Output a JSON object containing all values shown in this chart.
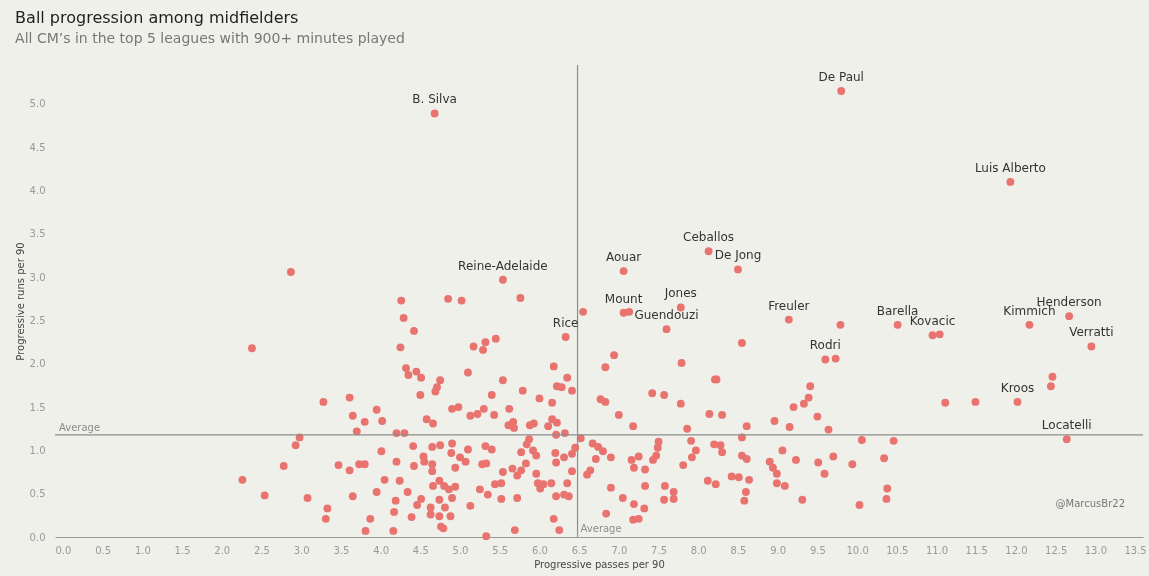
{
  "chart_data": {
    "type": "scatter",
    "title": "Ball progression among midfielders",
    "subtitle": "All CM’s in the top 5 leagues with 900+ minutes played",
    "xlabel": "Progressive passes per 90",
    "ylabel": "Progressive runs per 90",
    "xlim": [
      -0.1,
      13.6
    ],
    "ylim": [
      0,
      5.45
    ],
    "xticks": [
      {
        "value": 0,
        "label": "0.0"
      },
      0.5,
      {
        "value": 1,
        "label": "1.0"
      },
      1.5,
      {
        "value": 2,
        "label": "2.0"
      },
      2.5,
      {
        "value": 3,
        "label": "3.0"
      },
      3.5,
      {
        "value": 4,
        "label": "4.0"
      },
      4.5,
      {
        "value": 5,
        "label": "5.0"
      },
      5.5,
      {
        "value": 6,
        "label": "6.0"
      },
      6.5,
      {
        "value": 7,
        "label": "7.0"
      },
      7.5,
      {
        "value": 8,
        "label": "8.0"
      },
      8.5,
      {
        "value": 9,
        "label": "9.0"
      },
      9.5,
      {
        "value": 10,
        "label": "10.0"
      },
      10.5,
      {
        "value": 11,
        "label": "11.0"
      },
      11.5,
      {
        "value": 12,
        "label": "12.0"
      },
      12.5,
      {
        "value": 13,
        "label": "13.0"
      },
      13.5
    ],
    "yticks": [
      {
        "value": 0,
        "label": "0.0"
      },
      0.5,
      {
        "value": 1,
        "label": "1.0"
      },
      1.5,
      {
        "value": 2,
        "label": "2.0"
      },
      2.5,
      {
        "value": 3,
        "label": "3.0"
      },
      3.5,
      {
        "value": 4,
        "label": "4.0"
      },
      4.5,
      {
        "value": 5,
        "label": "5.0"
      }
    ],
    "grid": false,
    "marker": "circle",
    "series": [
      {
        "color": "#e8736f",
        "x": [
          2.87,
          2.38,
          3.28,
          3.61,
          3.65,
          3.95,
          3.8,
          4.02,
          3.7,
          2.98,
          2.93,
          4.01,
          2.78,
          3.47,
          3.61,
          3.73,
          3.8,
          2.26,
          4.05,
          2.54,
          3.08,
          3.65,
          3.95,
          3.33,
          3.31,
          3.87,
          3.81,
          4.16,
          4.26,
          4.85,
          5.02,
          5.76,
          4.29,
          4.42,
          4.25,
          5.17,
          5.32,
          5.29,
          5.45,
          4.32,
          4.35,
          4.45,
          4.51,
          4.75,
          4.71,
          4.69,
          4.5,
          5.1,
          5.54,
          5.4,
          5.79,
          6.0,
          6.16,
          6.18,
          6.35,
          6.22,
          6.28,
          6.41,
          4.9,
          4.98,
          5.62,
          5.43,
          5.3,
          5.13,
          5.22,
          4.58,
          4.66,
          5.61,
          5.67,
          5.68,
          5.88,
          5.93,
          6.11,
          6.16,
          6.22,
          4.2,
          4.3,
          6.21,
          6.32,
          6.52,
          4.41,
          4.65,
          4.75,
          4.9,
          4.89,
          5.1,
          5.32,
          5.4,
          4.2,
          4.54,
          4.55,
          4.65,
          4.42,
          5.0,
          5.07,
          4.94,
          5.28,
          5.33,
          5.77,
          5.87,
          5.84,
          5.92,
          5.96,
          5.83,
          6.2,
          6.21,
          6.31,
          6.41,
          6.45,
          4.65,
          5.54,
          5.66,
          5.72,
          5.77,
          5.96,
          6.41,
          4.24,
          4.74,
          4.66,
          4.8,
          4.86,
          4.94,
          4.9,
          5.25,
          5.44,
          5.52,
          5.35,
          5.52,
          5.72,
          5.98,
          6.05,
          6.15,
          6.01,
          6.35,
          6.21,
          6.31,
          6.37,
          4.34,
          4.19,
          4.46,
          4.51,
          4.74,
          5.13,
          4.63,
          4.63,
          4.81,
          4.74,
          4.88,
          4.17,
          4.39,
          4.76,
          4.79,
          5.33,
          5.69,
          6.18,
          6.25,
          6.55,
          8.55,
          6.94,
          6.83,
          7.79,
          8.21,
          8.23,
          6.77,
          6.83,
          7.42,
          7.57,
          7.78,
          7.0,
          7.18,
          8.14,
          8.3,
          7.86,
          8.61,
          8.55,
          8.96,
          6.67,
          6.74,
          6.8,
          6.9,
          6.71,
          6.64,
          6.6,
          7.5,
          7.49,
          7.47,
          7.43,
          7.25,
          7.16,
          7.19,
          7.33,
          7.91,
          7.97,
          7.92,
          7.81,
          8.2,
          8.28,
          8.3,
          8.55,
          8.61,
          8.9,
          8.94,
          8.99,
          8.99,
          6.9,
          7.33,
          7.58,
          7.69,
          8.12,
          8.22,
          8.42,
          8.51,
          8.64,
          8.6,
          8.58,
          7.05,
          7.19,
          7.32,
          7.57,
          7.69,
          6.84,
          7.18,
          7.25,
          9.79,
          9.41,
          9.39,
          9.33,
          9.2,
          9.5,
          9.15,
          9.64,
          11.11,
          10.06,
          10.46,
          9.06,
          9.23,
          9.51,
          9.7,
          9.59,
          9.94,
          10.34,
          9.09,
          9.31,
          10.03,
          10.38,
          10.37,
          11.49,
          12.46,
          12.44,
          4.68,
          9.8,
          11.93,
          8.13,
          7.06,
          8.5,
          5.54,
          7.78,
          7.06,
          7.13,
          7.6,
          6.33,
          9.14,
          10.51,
          10.95,
          11.04,
          12.17,
          12.67,
          12.95,
          9.6,
          9.73,
          12.02,
          12.64
        ],
        "values": [
          3.06,
          2.18,
          1.56,
          1.61,
          1.4,
          1.47,
          1.33,
          1.34,
          1.22,
          1.15,
          1.06,
          0.99,
          0.82,
          0.83,
          0.77,
          0.84,
          0.84,
          0.66,
          0.66,
          0.48,
          0.45,
          0.47,
          0.52,
          0.33,
          0.21,
          0.21,
          0.07,
          0.07,
          2.73,
          2.75,
          2.73,
          2.76,
          2.53,
          2.38,
          2.19,
          2.2,
          2.25,
          2.16,
          2.29,
          1.95,
          1.87,
          1.91,
          1.84,
          1.81,
          1.73,
          1.68,
          1.64,
          1.9,
          1.81,
          1.64,
          1.69,
          1.6,
          1.55,
          1.97,
          1.84,
          1.74,
          1.73,
          1.69,
          1.48,
          1.5,
          1.48,
          1.41,
          1.48,
          1.4,
          1.42,
          1.36,
          1.31,
          1.29,
          1.33,
          1.26,
          1.29,
          1.31,
          1.28,
          1.36,
          1.32,
          1.2,
          1.2,
          1.18,
          1.2,
          1.14,
          1.05,
          1.04,
          1.06,
          1.08,
          0.97,
          1.01,
          1.05,
          1.01,
          0.87,
          0.93,
          0.87,
          0.84,
          0.82,
          0.92,
          0.87,
          0.8,
          0.84,
          0.85,
          0.98,
          1.13,
          1.07,
          1.0,
          0.94,
          0.85,
          0.97,
          0.86,
          0.92,
          0.96,
          1.03,
          0.76,
          0.75,
          0.79,
          0.71,
          0.77,
          0.73,
          0.76,
          0.65,
          0.65,
          0.59,
          0.59,
          0.55,
          0.58,
          0.45,
          0.55,
          0.61,
          0.62,
          0.49,
          0.44,
          0.45,
          0.62,
          0.61,
          0.62,
          0.56,
          0.62,
          0.47,
          0.49,
          0.47,
          0.52,
          0.42,
          0.37,
          0.44,
          0.43,
          0.36,
          0.34,
          0.26,
          0.34,
          0.24,
          0.24,
          0.29,
          0.23,
          0.12,
          0.1,
          0.01,
          0.08,
          0.21,
          0.08,
          2.6,
          2.24,
          2.1,
          1.96,
          2.01,
          1.82,
          1.82,
          1.59,
          1.56,
          1.66,
          1.64,
          1.54,
          1.41,
          1.28,
          1.42,
          1.41,
          1.25,
          1.28,
          1.15,
          1.34,
          1.08,
          1.04,
          0.99,
          0.92,
          0.9,
          0.77,
          0.72,
          1.1,
          1.03,
          0.94,
          0.89,
          0.93,
          0.89,
          0.8,
          0.78,
          1.11,
          1.0,
          0.92,
          0.83,
          1.07,
          1.06,
          0.98,
          0.94,
          0.9,
          0.87,
          0.8,
          0.73,
          0.62,
          0.57,
          0.59,
          0.59,
          0.52,
          0.65,
          0.61,
          0.7,
          0.69,
          0.66,
          0.52,
          0.42,
          0.45,
          0.38,
          0.33,
          0.43,
          0.44,
          0.27,
          0.2,
          0.21,
          2.45,
          1.74,
          1.61,
          1.54,
          1.5,
          1.39,
          1.27,
          1.24,
          1.55,
          1.12,
          1.11,
          1.0,
          0.89,
          0.86,
          0.93,
          0.73,
          0.84,
          0.91,
          0.59,
          0.43,
          0.37,
          0.56,
          0.44,
          1.56,
          1.85,
          1.74,
          4.89,
          5.15,
          4.1,
          3.3,
          3.07,
          3.09,
          2.97,
          2.65,
          2.59,
          2.6,
          2.4,
          2.31,
          2.51,
          2.45,
          2.33,
          2.34,
          2.45,
          2.55,
          2.2,
          2.05,
          2.06,
          1.56,
          1.13
        ]
      }
    ],
    "ref_lines": [
      {
        "axis": "x",
        "value": 6.48,
        "label": "Average",
        "color": "#8c8c8c"
      },
      {
        "axis": "y",
        "value": 1.18,
        "label": "Average",
        "color": "#8c8c8c"
      }
    ],
    "annotations": [
      {
        "text": "B. Silva",
        "x": 4.68,
        "y": 4.89
      },
      {
        "text": "De Paul",
        "x": 9.8,
        "y": 5.15
      },
      {
        "text": "Luis Alberto",
        "x": 11.93,
        "y": 4.1
      },
      {
        "text": "Ceballos",
        "x": 8.13,
        "y": 3.3
      },
      {
        "text": "Aouar",
        "x": 7.06,
        "y": 3.07
      },
      {
        "text": "De Jong",
        "x": 8.5,
        "y": 3.09
      },
      {
        "text": "Reine-Adelaide",
        "x": 5.54,
        "y": 2.97
      },
      {
        "text": "Jones",
        "x": 7.78,
        "y": 2.65
      },
      {
        "text": "Mount",
        "x": 7.06,
        "y": 2.59
      },
      {
        "text": "Guendouzi",
        "x": 7.6,
        "y": 2.4
      },
      {
        "text": "Rice",
        "x": 6.33,
        "y": 2.31
      },
      {
        "text": "Freuler",
        "x": 9.14,
        "y": 2.51
      },
      {
        "text": "Barella",
        "x": 10.51,
        "y": 2.45
      },
      {
        "text": "Kovacic",
        "x": 10.95,
        "y": 2.33
      },
      {
        "text": "Kimmich",
        "x": 12.17,
        "y": 2.45
      },
      {
        "text": "Henderson",
        "x": 12.67,
        "y": 2.55
      },
      {
        "text": "Verratti",
        "x": 12.95,
        "y": 2.2
      },
      {
        "text": "Rodri",
        "x": 9.6,
        "y": 2.05
      },
      {
        "text": "Kroos",
        "x": 12.02,
        "y": 1.56
      },
      {
        "text": "Locatelli",
        "x": 12.64,
        "y": 1.13
      },
      "@MarcusBr22"
    ]
  }
}
